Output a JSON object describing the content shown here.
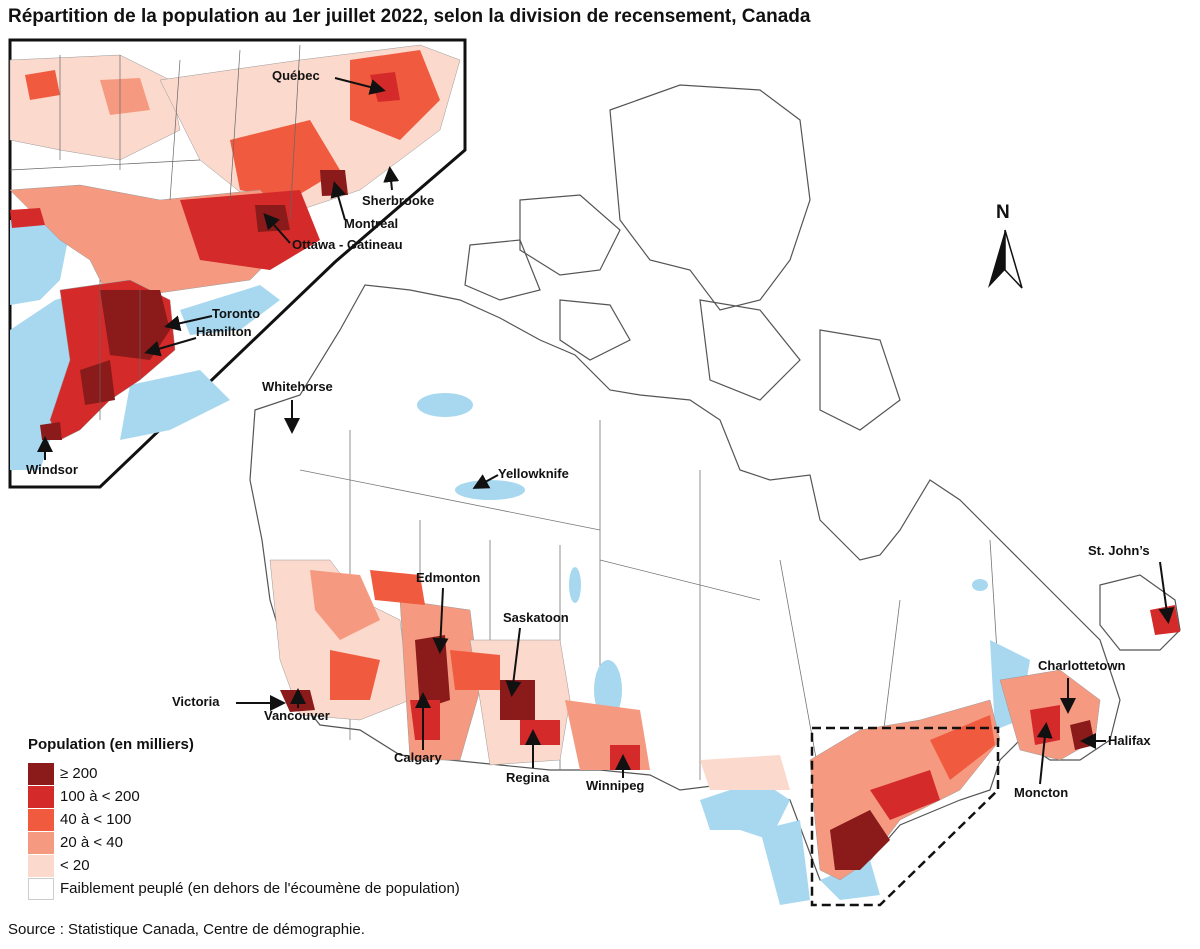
{
  "title": "Répartition de la population au 1er juillet 2022, selon la division de recensement, Canada",
  "source": "Source : Statistique Canada, Centre de démographie.",
  "north_label": "N",
  "legend": {
    "title": "Population (en milliers)",
    "items": [
      {
        "label": "≥ 200",
        "color": "#8b1a1a"
      },
      {
        "label": "100 à < 200",
        "color": "#d42a2a"
      },
      {
        "label": "40 à < 100",
        "color": "#f05a3e"
      },
      {
        "label": "20 à < 40",
        "color": "#f59a80"
      },
      {
        "label": "< 20",
        "color": "#fbd9cc"
      },
      {
        "label": "Faiblement peuplé (en dehors de l'écoumène de population)",
        "color": "#ffffff"
      }
    ]
  },
  "colors": {
    "water": "#a8d8f0",
    "outline": "#555555",
    "land": "#ffffff"
  },
  "cities": {
    "quebec": "Québec",
    "sherbrooke": "Sherbrooke",
    "montreal": "Montréal",
    "ottawa": "Ottawa - Gatineau",
    "toronto": "Toronto",
    "hamilton": "Hamilton",
    "windsor": "Windsor",
    "whitehorse": "Whitehorse",
    "yellowknife": "Yellowknife",
    "edmonton": "Edmonton",
    "saskatoon": "Saskatoon",
    "victoria": "Victoria",
    "vancouver": "Vancouver",
    "calgary": "Calgary",
    "regina": "Regina",
    "winnipeg": "Winnipeg",
    "stjohns": "St. John’s",
    "charlottetown": "Charlottetown",
    "halifax": "Halifax",
    "moncton": "Moncton"
  }
}
